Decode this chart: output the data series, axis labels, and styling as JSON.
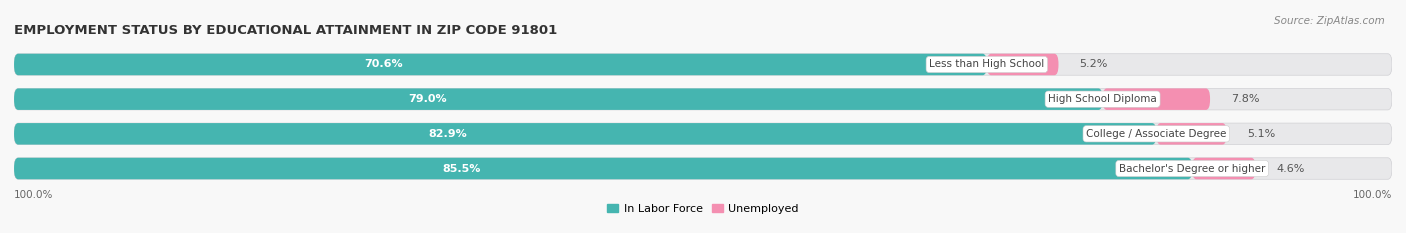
{
  "title": "EMPLOYMENT STATUS BY EDUCATIONAL ATTAINMENT IN ZIP CODE 91801",
  "source": "Source: ZipAtlas.com",
  "categories": [
    "Less than High School",
    "High School Diploma",
    "College / Associate Degree",
    "Bachelor's Degree or higher"
  ],
  "labor_force": [
    70.6,
    79.0,
    82.9,
    85.5
  ],
  "unemployed": [
    5.2,
    7.8,
    5.1,
    4.6
  ],
  "labor_force_color": "#45b5b0",
  "unemployed_color": "#f48fb1",
  "bar_bg_color": "#e8e8ea",
  "background_color": "#f8f8f8",
  "x_left_label": "100.0%",
  "x_right_label": "100.0%",
  "legend_labor": "In Labor Force",
  "legend_unemployed": "Unemployed",
  "title_fontsize": 9.5,
  "source_fontsize": 7.5,
  "bar_label_fontsize": 8.0,
  "category_fontsize": 7.5,
  "bar_height": 0.62,
  "total": 100.0
}
